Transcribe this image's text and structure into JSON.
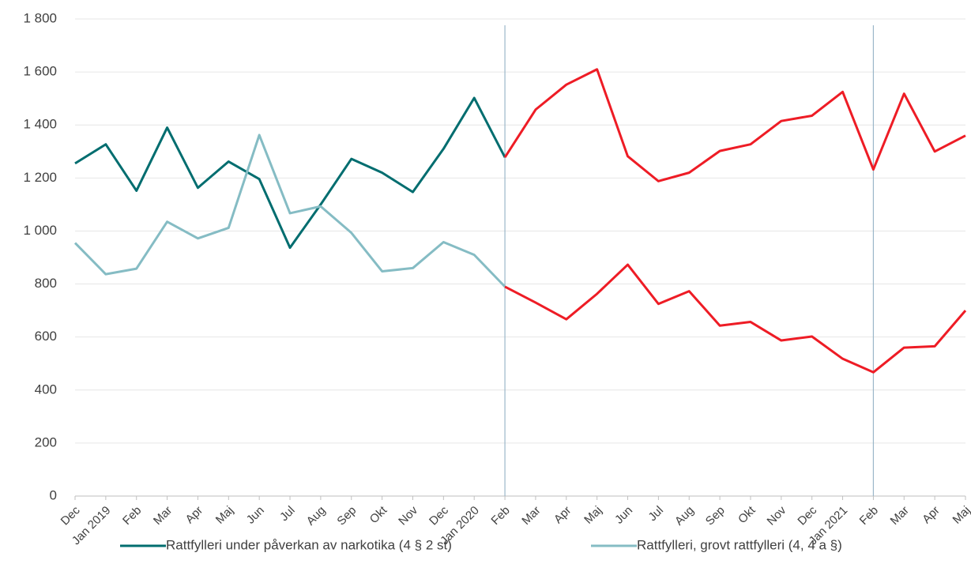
{
  "chart_data": {
    "type": "line",
    "categories": [
      "Dec",
      "Jan 2019",
      "Feb",
      "Mar",
      "Apr",
      "Maj",
      "Jun",
      "Jul",
      "Aug",
      "Sep",
      "Okt",
      "Nov",
      "Dec",
      "Jan 2020",
      "Feb",
      "Mar",
      "Apr",
      "Maj",
      "Jun",
      "Jul",
      "Aug",
      "Sep",
      "Okt",
      "Nov",
      "Dec",
      "Jan 2021",
      "Feb",
      "Mar",
      "Apr",
      "Maj"
    ],
    "series": [
      {
        "name": "Rattfylleri under påverkan av narkotika (4 § 2 st)",
        "color": "#006d6f",
        "values": [
          1255,
          1327,
          1152,
          1390,
          1163,
          1262,
          1196,
          937,
          1100,
          1272,
          1220,
          1147,
          1310,
          1502,
          1278,
          1458,
          1552,
          1610,
          1282,
          1188,
          1220,
          1302,
          1327,
          1415,
          1435,
          1525,
          1232,
          1518,
          1300,
          1360
        ]
      },
      {
        "name": "Rattfylleri, grovt rattfylleri (4, 4 a §)",
        "color": "#85bcc4",
        "values": [
          955,
          837,
          858,
          1035,
          972,
          1012,
          1362,
          1067,
          1093,
          993,
          848,
          860,
          958,
          910,
          790,
          730,
          667,
          763,
          873,
          725,
          773,
          643,
          657,
          587,
          602,
          518,
          467,
          560,
          565,
          700
        ]
      }
    ],
    "highlight": {
      "start_index": 14,
      "color": "#ee1c25"
    },
    "vlines": [
      14,
      26
    ],
    "ylim": [
      0,
      1800
    ],
    "yticks": [
      0,
      200,
      400,
      600,
      800,
      {
        "value": 1000,
        "label": "1 000"
      },
      {
        "value": 1200,
        "label": "1 200"
      },
      {
        "value": 1400,
        "label": "1 400"
      },
      {
        "value": 1600,
        "label": "1 600"
      },
      {
        "value": 1800,
        "label": "1 800"
      }
    ],
    "grid": true,
    "legend": "bottom"
  }
}
